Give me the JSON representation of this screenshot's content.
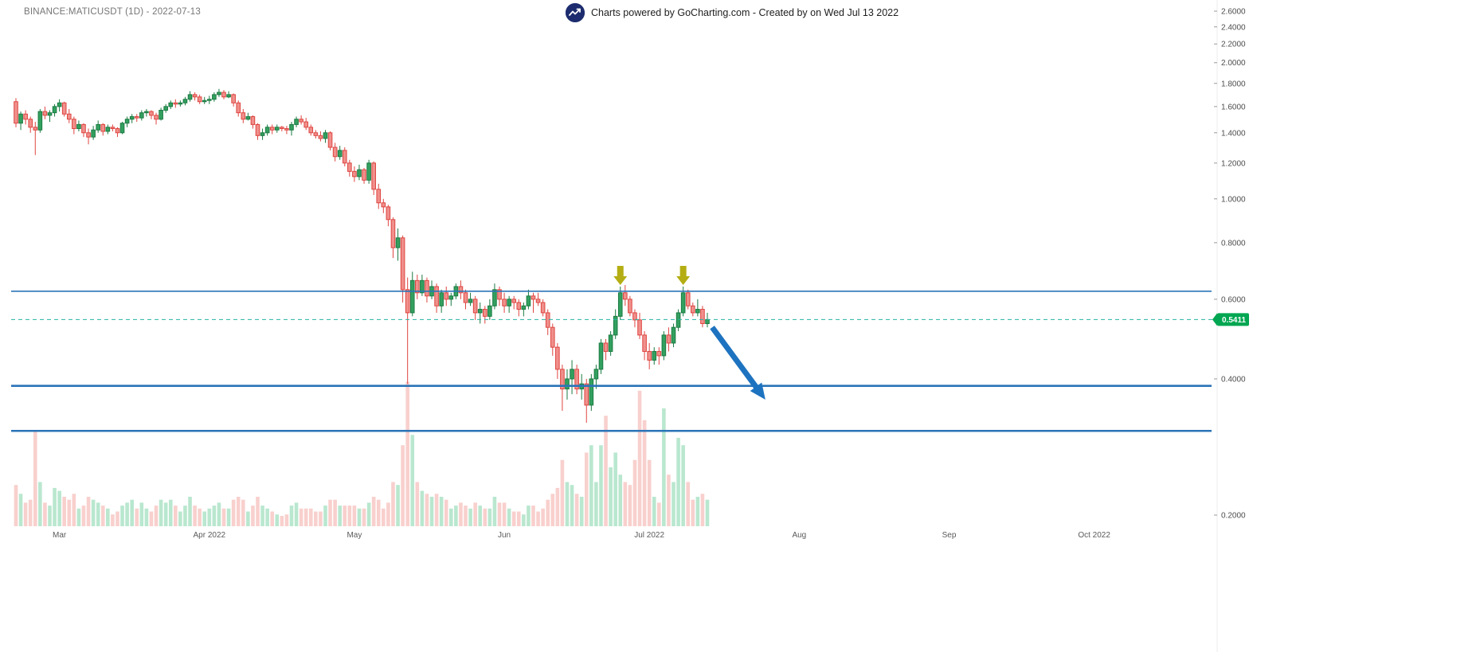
{
  "header": {
    "symbol_label": "BINANCE:MATICUSDT (1D) - 2022-07-13",
    "brand_text": "Charts powered by GoCharting.com - Created by  on Wed Jul 13 2022",
    "logo_icon": "gocharting-logo"
  },
  "chart_data": {
    "type": "candlestick",
    "symbol": "BINANCE:MATICUSDT",
    "interval": "1D",
    "as_of_date": "2022-07-13",
    "last_price": 0.5411,
    "last_price_label": "0.5411",
    "y_axis": {
      "scale": "log",
      "side": "right",
      "tick_labels": [
        "2.6000",
        "2.4000",
        "2.2000",
        "2.0000",
        "1.8000",
        "1.6000",
        "1.4000",
        "1.2000",
        "1.0000",
        "0.8000",
        "0.6000",
        "0.4000",
        "0.2000"
      ]
    },
    "x_axis": {
      "start_date": "2022-02-20",
      "ticks": [
        {
          "label": "Mar",
          "day_index": 9
        },
        {
          "label": "Apr 2022",
          "day_index": 40
        },
        {
          "label": "May",
          "day_index": 70
        },
        {
          "label": "Jun",
          "day_index": 101
        },
        {
          "label": "Jul 2022",
          "day_index": 131
        },
        {
          "label": "Aug",
          "day_index": 162
        },
        {
          "label": "Sep",
          "day_index": 193
        },
        {
          "label": "Oct 2022",
          "day_index": 223
        }
      ]
    },
    "columns": [
      "date",
      "open",
      "high",
      "low",
      "close",
      "volume_rel"
    ],
    "candles": [
      [
        "2022-02-20",
        1.64,
        1.67,
        1.44,
        1.47,
        0.28
      ],
      [
        "2022-02-21",
        1.47,
        1.56,
        1.42,
        1.54,
        0.22
      ],
      [
        "2022-02-22",
        1.54,
        1.57,
        1.46,
        1.5,
        0.16
      ],
      [
        "2022-02-23",
        1.5,
        1.52,
        1.4,
        1.44,
        0.18
      ],
      [
        "2022-02-24",
        1.44,
        1.48,
        1.25,
        1.42,
        0.65
      ],
      [
        "2022-02-25",
        1.42,
        1.58,
        1.4,
        1.56,
        0.3
      ],
      [
        "2022-02-26",
        1.56,
        1.6,
        1.5,
        1.53,
        0.16
      ],
      [
        "2022-02-27",
        1.53,
        1.57,
        1.48,
        1.55,
        0.14
      ],
      [
        "2022-02-28",
        1.55,
        1.62,
        1.52,
        1.6,
        0.26
      ],
      [
        "2022-03-01",
        1.6,
        1.66,
        1.56,
        1.63,
        0.24
      ],
      [
        "2022-03-02",
        1.63,
        1.64,
        1.52,
        1.54,
        0.2
      ],
      [
        "2022-03-03",
        1.54,
        1.58,
        1.47,
        1.5,
        0.18
      ],
      [
        "2022-03-04",
        1.5,
        1.52,
        1.39,
        1.43,
        0.22
      ],
      [
        "2022-03-05",
        1.43,
        1.49,
        1.41,
        1.46,
        0.12
      ],
      [
        "2022-03-06",
        1.46,
        1.47,
        1.37,
        1.4,
        0.14
      ],
      [
        "2022-03-07",
        1.4,
        1.43,
        1.32,
        1.37,
        0.2
      ],
      [
        "2022-03-08",
        1.37,
        1.45,
        1.35,
        1.42,
        0.18
      ],
      [
        "2022-03-09",
        1.42,
        1.49,
        1.4,
        1.46,
        0.16
      ],
      [
        "2022-03-10",
        1.46,
        1.47,
        1.38,
        1.41,
        0.14
      ],
      [
        "2022-03-11",
        1.41,
        1.46,
        1.39,
        1.44,
        0.12
      ],
      [
        "2022-03-12",
        1.44,
        1.46,
        1.41,
        1.43,
        0.08
      ],
      [
        "2022-03-13",
        1.43,
        1.44,
        1.37,
        1.4,
        0.1
      ],
      [
        "2022-03-14",
        1.4,
        1.48,
        1.39,
        1.47,
        0.14
      ],
      [
        "2022-03-15",
        1.47,
        1.52,
        1.44,
        1.5,
        0.16
      ],
      [
        "2022-03-16",
        1.5,
        1.54,
        1.47,
        1.52,
        0.18
      ],
      [
        "2022-03-17",
        1.52,
        1.54,
        1.48,
        1.51,
        0.12
      ],
      [
        "2022-03-18",
        1.51,
        1.57,
        1.49,
        1.55,
        0.16
      ],
      [
        "2022-03-19",
        1.55,
        1.58,
        1.52,
        1.56,
        0.12
      ],
      [
        "2022-03-20",
        1.56,
        1.57,
        1.5,
        1.53,
        0.1
      ],
      [
        "2022-03-21",
        1.53,
        1.55,
        1.46,
        1.5,
        0.14
      ],
      [
        "2022-03-22",
        1.5,
        1.59,
        1.49,
        1.57,
        0.18
      ],
      [
        "2022-03-23",
        1.57,
        1.62,
        1.55,
        1.6,
        0.16
      ],
      [
        "2022-03-24",
        1.6,
        1.65,
        1.58,
        1.63,
        0.18
      ],
      [
        "2022-03-25",
        1.63,
        1.66,
        1.59,
        1.62,
        0.14
      ],
      [
        "2022-03-26",
        1.62,
        1.65,
        1.6,
        1.63,
        0.1
      ],
      [
        "2022-03-27",
        1.63,
        1.68,
        1.61,
        1.66,
        0.14
      ],
      [
        "2022-03-28",
        1.66,
        1.73,
        1.64,
        1.7,
        0.2
      ],
      [
        "2022-03-29",
        1.7,
        1.72,
        1.65,
        1.68,
        0.14
      ],
      [
        "2022-03-30",
        1.68,
        1.7,
        1.62,
        1.64,
        0.12
      ],
      [
        "2022-03-31",
        1.64,
        1.68,
        1.62,
        1.65,
        0.1
      ],
      [
        "2022-04-01",
        1.65,
        1.69,
        1.62,
        1.66,
        0.12
      ],
      [
        "2022-04-02",
        1.66,
        1.72,
        1.64,
        1.7,
        0.14
      ],
      [
        "2022-04-03",
        1.7,
        1.75,
        1.68,
        1.72,
        0.16
      ],
      [
        "2022-04-04",
        1.72,
        1.74,
        1.66,
        1.68,
        0.12
      ],
      [
        "2022-04-05",
        1.68,
        1.73,
        1.67,
        1.7,
        0.12
      ],
      [
        "2022-04-06",
        1.7,
        1.71,
        1.6,
        1.63,
        0.18
      ],
      [
        "2022-04-07",
        1.63,
        1.65,
        1.52,
        1.55,
        0.2
      ],
      [
        "2022-04-08",
        1.55,
        1.58,
        1.47,
        1.5,
        0.18
      ],
      [
        "2022-04-09",
        1.5,
        1.55,
        1.49,
        1.52,
        0.1
      ],
      [
        "2022-04-10",
        1.52,
        1.53,
        1.43,
        1.46,
        0.14
      ],
      [
        "2022-04-11",
        1.46,
        1.47,
        1.35,
        1.38,
        0.2
      ],
      [
        "2022-04-12",
        1.38,
        1.43,
        1.35,
        1.4,
        0.14
      ],
      [
        "2022-04-13",
        1.4,
        1.46,
        1.38,
        1.44,
        0.12
      ],
      [
        "2022-04-14",
        1.44,
        1.46,
        1.39,
        1.42,
        0.1
      ],
      [
        "2022-04-15",
        1.42,
        1.46,
        1.4,
        1.44,
        0.08
      ],
      [
        "2022-04-16",
        1.44,
        1.45,
        1.41,
        1.43,
        0.07
      ],
      [
        "2022-04-17",
        1.43,
        1.45,
        1.39,
        1.42,
        0.08
      ],
      [
        "2022-04-18",
        1.42,
        1.48,
        1.38,
        1.46,
        0.14
      ],
      [
        "2022-04-19",
        1.46,
        1.52,
        1.44,
        1.5,
        0.16
      ],
      [
        "2022-04-20",
        1.5,
        1.53,
        1.46,
        1.48,
        0.12
      ],
      [
        "2022-04-21",
        1.48,
        1.51,
        1.42,
        1.44,
        0.12
      ],
      [
        "2022-04-22",
        1.44,
        1.46,
        1.38,
        1.4,
        0.12
      ],
      [
        "2022-04-23",
        1.4,
        1.42,
        1.36,
        1.38,
        0.1
      ],
      [
        "2022-04-24",
        1.38,
        1.41,
        1.34,
        1.36,
        0.1
      ],
      [
        "2022-04-25",
        1.36,
        1.42,
        1.33,
        1.4,
        0.14
      ],
      [
        "2022-04-26",
        1.4,
        1.41,
        1.28,
        1.3,
        0.18
      ],
      [
        "2022-04-27",
        1.3,
        1.33,
        1.21,
        1.24,
        0.18
      ],
      [
        "2022-04-28",
        1.24,
        1.31,
        1.22,
        1.28,
        0.14
      ],
      [
        "2022-04-29",
        1.28,
        1.3,
        1.18,
        1.2,
        0.14
      ],
      [
        "2022-04-30",
        1.2,
        1.22,
        1.12,
        1.15,
        0.14
      ],
      [
        "2022-05-01",
        1.15,
        1.18,
        1.09,
        1.12,
        0.14
      ],
      [
        "2022-05-02",
        1.12,
        1.19,
        1.1,
        1.16,
        0.12
      ],
      [
        "2022-05-03",
        1.16,
        1.17,
        1.08,
        1.1,
        0.12
      ],
      [
        "2022-05-04",
        1.1,
        1.22,
        1.08,
        1.2,
        0.16
      ],
      [
        "2022-05-05",
        1.2,
        1.21,
        1.02,
        1.05,
        0.2
      ],
      [
        "2022-05-06",
        1.05,
        1.08,
        0.95,
        0.98,
        0.18
      ],
      [
        "2022-05-07",
        0.98,
        1.0,
        0.93,
        0.96,
        0.12
      ],
      [
        "2022-05-08",
        0.96,
        0.97,
        0.87,
        0.9,
        0.16
      ],
      [
        "2022-05-09",
        0.9,
        0.91,
        0.74,
        0.78,
        0.3
      ],
      [
        "2022-05-10",
        0.78,
        0.86,
        0.73,
        0.82,
        0.28
      ],
      [
        "2022-05-11",
        0.82,
        0.83,
        0.59,
        0.63,
        0.55
      ],
      [
        "2022-05-12",
        0.63,
        0.67,
        0.39,
        0.56,
        0.98
      ],
      [
        "2022-05-13",
        0.56,
        0.69,
        0.55,
        0.66,
        0.62
      ],
      [
        "2022-05-14",
        0.66,
        0.68,
        0.6,
        0.62,
        0.3
      ],
      [
        "2022-05-15",
        0.62,
        0.68,
        0.61,
        0.66,
        0.24
      ],
      [
        "2022-05-16",
        0.66,
        0.67,
        0.59,
        0.61,
        0.22
      ],
      [
        "2022-05-17",
        0.61,
        0.66,
        0.6,
        0.64,
        0.2
      ],
      [
        "2022-05-18",
        0.64,
        0.65,
        0.56,
        0.58,
        0.22
      ],
      [
        "2022-05-19",
        0.58,
        0.63,
        0.56,
        0.62,
        0.2
      ],
      [
        "2022-05-20",
        0.62,
        0.64,
        0.58,
        0.6,
        0.18
      ],
      [
        "2022-05-21",
        0.6,
        0.62,
        0.58,
        0.61,
        0.12
      ],
      [
        "2022-05-22",
        0.61,
        0.65,
        0.6,
        0.64,
        0.14
      ],
      [
        "2022-05-23",
        0.64,
        0.66,
        0.6,
        0.62,
        0.16
      ],
      [
        "2022-05-24",
        0.62,
        0.63,
        0.57,
        0.59,
        0.14
      ],
      [
        "2022-05-25",
        0.59,
        0.62,
        0.58,
        0.6,
        0.12
      ],
      [
        "2022-05-26",
        0.6,
        0.61,
        0.54,
        0.56,
        0.16
      ],
      [
        "2022-05-27",
        0.56,
        0.59,
        0.53,
        0.57,
        0.14
      ],
      [
        "2022-05-28",
        0.57,
        0.58,
        0.53,
        0.55,
        0.12
      ],
      [
        "2022-05-29",
        0.55,
        0.6,
        0.54,
        0.58,
        0.12
      ],
      [
        "2022-05-30",
        0.58,
        0.65,
        0.57,
        0.63,
        0.2
      ],
      [
        "2022-05-31",
        0.63,
        0.64,
        0.58,
        0.6,
        0.16
      ],
      [
        "2022-06-01",
        0.6,
        0.62,
        0.56,
        0.58,
        0.16
      ],
      [
        "2022-06-02",
        0.58,
        0.61,
        0.56,
        0.6,
        0.12
      ],
      [
        "2022-06-03",
        0.6,
        0.61,
        0.57,
        0.59,
        0.1
      ],
      [
        "2022-06-04",
        0.59,
        0.6,
        0.55,
        0.57,
        0.1
      ],
      [
        "2022-06-05",
        0.57,
        0.59,
        0.55,
        0.58,
        0.08
      ],
      [
        "2022-06-06",
        0.58,
        0.63,
        0.57,
        0.61,
        0.14
      ],
      [
        "2022-06-07",
        0.61,
        0.62,
        0.56,
        0.6,
        0.14
      ],
      [
        "2022-06-08",
        0.6,
        0.62,
        0.58,
        0.59,
        0.1
      ],
      [
        "2022-06-09",
        0.59,
        0.6,
        0.55,
        0.56,
        0.12
      ],
      [
        "2022-06-10",
        0.56,
        0.57,
        0.5,
        0.52,
        0.18
      ],
      [
        "2022-06-11",
        0.52,
        0.53,
        0.45,
        0.47,
        0.22
      ],
      [
        "2022-06-12",
        0.47,
        0.48,
        0.4,
        0.42,
        0.26
      ],
      [
        "2022-06-13",
        0.42,
        0.43,
        0.34,
        0.38,
        0.45
      ],
      [
        "2022-06-14",
        0.38,
        0.42,
        0.36,
        0.4,
        0.3
      ],
      [
        "2022-06-15",
        0.4,
        0.44,
        0.37,
        0.42,
        0.28
      ],
      [
        "2022-06-16",
        0.42,
        0.43,
        0.37,
        0.38,
        0.22
      ],
      [
        "2022-06-17",
        0.38,
        0.41,
        0.36,
        0.39,
        0.2
      ],
      [
        "2022-06-18",
        0.39,
        0.4,
        0.32,
        0.35,
        0.5
      ],
      [
        "2022-06-19",
        0.35,
        0.41,
        0.34,
        0.4,
        0.55
      ],
      [
        "2022-06-20",
        0.4,
        0.43,
        0.38,
        0.42,
        0.3
      ],
      [
        "2022-06-21",
        0.42,
        0.49,
        0.41,
        0.48,
        0.55
      ],
      [
        "2022-06-22",
        0.48,
        0.49,
        0.44,
        0.46,
        0.75
      ],
      [
        "2022-06-23",
        0.46,
        0.51,
        0.45,
        0.5,
        0.4
      ],
      [
        "2022-06-24",
        0.5,
        0.57,
        0.49,
        0.55,
        0.5
      ],
      [
        "2022-06-25",
        0.55,
        0.64,
        0.54,
        0.62,
        0.35
      ],
      [
        "2022-06-26",
        0.62,
        0.645,
        0.58,
        0.6,
        0.3
      ],
      [
        "2022-06-27",
        0.6,
        0.61,
        0.55,
        0.56,
        0.28
      ],
      [
        "2022-06-28",
        0.56,
        0.57,
        0.52,
        0.54,
        0.45
      ],
      [
        "2022-06-29",
        0.54,
        0.56,
        0.49,
        0.5,
        0.92
      ],
      [
        "2022-06-30",
        0.5,
        0.51,
        0.44,
        0.46,
        0.72
      ],
      [
        "2022-07-01",
        0.46,
        0.48,
        0.42,
        0.44,
        0.45
      ],
      [
        "2022-07-02",
        0.44,
        0.47,
        0.43,
        0.46,
        0.2
      ],
      [
        "2022-07-03",
        0.46,
        0.47,
        0.43,
        0.45,
        0.16
      ],
      [
        "2022-07-04",
        0.45,
        0.51,
        0.44,
        0.5,
        0.8
      ],
      [
        "2022-07-05",
        0.5,
        0.52,
        0.46,
        0.48,
        0.35
      ],
      [
        "2022-07-06",
        0.48,
        0.53,
        0.47,
        0.52,
        0.3
      ],
      [
        "2022-07-07",
        0.52,
        0.57,
        0.51,
        0.56,
        0.6
      ],
      [
        "2022-07-08",
        0.56,
        0.64,
        0.55,
        0.62,
        0.55
      ],
      [
        "2022-07-09",
        0.62,
        0.63,
        0.57,
        0.58,
        0.3
      ],
      [
        "2022-07-10",
        0.58,
        0.59,
        0.55,
        0.56,
        0.18
      ],
      [
        "2022-07-11",
        0.56,
        0.6,
        0.55,
        0.57,
        0.2
      ],
      [
        "2022-07-12",
        0.57,
        0.58,
        0.52,
        0.53,
        0.22
      ],
      [
        "2022-07-13",
        0.53,
        0.56,
        0.52,
        0.5411,
        0.18
      ]
    ],
    "horizontal_lines": [
      {
        "price": 0.625,
        "color": "#2b74b8",
        "width": 1.6
      },
      {
        "price": 0.386,
        "color": "#2b74b8",
        "width": 2.6
      },
      {
        "price": 0.307,
        "color": "#2b74b8",
        "width": 2.6
      }
    ],
    "current_price_line": {
      "price": 0.5411,
      "style": "dashed",
      "color": "#26b3a4"
    },
    "annotations": {
      "yellow_arrows": [
        {
          "day_index": 125,
          "tip_price": 0.645
        },
        {
          "day_index": 138,
          "tip_price": 0.645
        }
      ],
      "trend_arrow": {
        "from": {
          "day_index": 144,
          "price": 0.52
        },
        "to": {
          "day_index": 155,
          "price": 0.36
        },
        "color": "#1e73c0"
      }
    },
    "colors": {
      "up_fill": "#33a05f",
      "up_border": "#1b7a42",
      "down_fill": "#f0908c",
      "down_border": "#de4540",
      "vol_up": "#b9e7cf",
      "vol_down": "#f8d0cd",
      "badge": "#00a651",
      "arrow_yellow": "#b4ae14"
    }
  }
}
